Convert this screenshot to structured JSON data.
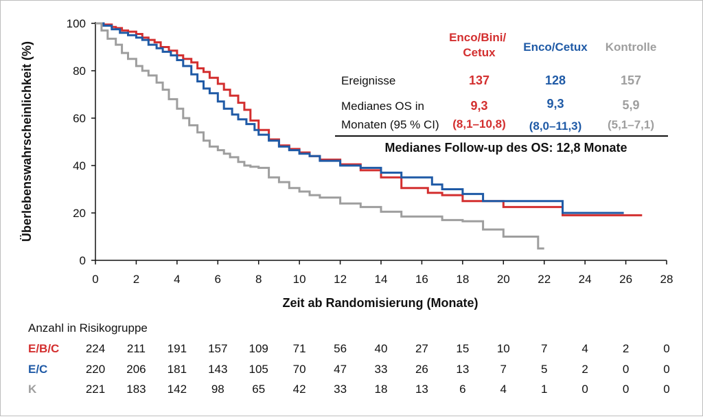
{
  "chart_data": {
    "type": "line",
    "ylabel": "Überlebenswahrscheinlichkeit (%)",
    "xlabel": "Zeit ab Randomisierung (Monate)",
    "xlim": [
      0,
      28
    ],
    "ylim": [
      0,
      100
    ],
    "x_ticks": [
      "0",
      "2",
      "4",
      "6",
      "8",
      "10",
      "12",
      "14",
      "16",
      "18",
      "20",
      "22",
      "24",
      "26",
      "28"
    ],
    "y_ticks": [
      "0",
      "20",
      "40",
      "60",
      "80",
      "100"
    ],
    "step": true,
    "series": [
      {
        "name": "Enco/Bini/Cetux",
        "short": "E/B/C",
        "color": "#d32f2f",
        "x": [
          0,
          0.4,
          0.8,
          1.0,
          1.3,
          1.6,
          2.0,
          2.3,
          2.6,
          2.9,
          3.2,
          3.6,
          4.0,
          4.3,
          4.7,
          5.0,
          5.3,
          5.6,
          6.0,
          6.3,
          6.6,
          7.0,
          7.3,
          7.6,
          8.0,
          8.5,
          9.0,
          9.5,
          10.0,
          10.5,
          11.0,
          12.0,
          13.0,
          14.0,
          15.0,
          16.0,
          16.3,
          17.0,
          18.0,
          19.0,
          20.0,
          22.0,
          22.9,
          24.0,
          26.0,
          26.8
        ],
        "y": [
          100,
          99.5,
          98.5,
          98,
          97,
          96.5,
          95.5,
          94,
          93,
          92,
          90,
          88.5,
          86.5,
          85,
          83.5,
          81,
          79.5,
          77,
          74.5,
          72,
          69.5,
          66.5,
          63.5,
          59,
          55,
          51,
          48.5,
          47,
          45.5,
          44,
          42.5,
          40.5,
          38,
          35,
          30.5,
          30.5,
          28.5,
          27.5,
          25,
          25,
          22.5,
          22.5,
          19,
          19,
          19,
          19
        ]
      },
      {
        "name": "Enco/Cetux",
        "short": "E/C",
        "color": "#1f5aa6",
        "x": [
          0,
          0.4,
          0.8,
          1.2,
          1.6,
          2.0,
          2.3,
          2.6,
          3.0,
          3.3,
          3.7,
          4.0,
          4.3,
          4.7,
          5.0,
          5.3,
          5.6,
          6.0,
          6.3,
          6.7,
          7.0,
          7.4,
          7.8,
          8.0,
          8.5,
          9.0,
          9.5,
          10.0,
          10.5,
          11.0,
          12.0,
          13.0,
          14.0,
          15.0,
          16.0,
          16.5,
          17.0,
          18.0,
          19.0,
          20.0,
          21.0,
          22.0,
          22.9,
          24.0,
          25.0,
          25.9
        ],
        "y": [
          100,
          99,
          97.5,
          96,
          95,
          94,
          93,
          91,
          89.5,
          88,
          86.5,
          84.5,
          82,
          78.5,
          75.5,
          72.5,
          70.5,
          67,
          64,
          61.5,
          59.5,
          57.5,
          55,
          53,
          50.5,
          48,
          46.5,
          45,
          44,
          42,
          40,
          39,
          37,
          35,
          35,
          32,
          30,
          28,
          25,
          25,
          25,
          25,
          20,
          20,
          20,
          20
        ]
      },
      {
        "name": "Kontrolle",
        "short": "K",
        "color": "#9e9e9e",
        "x": [
          0,
          0.3,
          0.6,
          1.0,
          1.3,
          1.6,
          2.0,
          2.3,
          2.6,
          3.0,
          3.3,
          3.6,
          4.0,
          4.3,
          4.6,
          5.0,
          5.3,
          5.6,
          6.0,
          6.3,
          6.6,
          7.0,
          7.3,
          7.6,
          8.0,
          8.5,
          9.0,
          9.5,
          10.0,
          10.5,
          11.0,
          12.0,
          13.0,
          14.0,
          15.0,
          16.0,
          17.0,
          18.0,
          19.0,
          20.0,
          21.0,
          21.7,
          22.0
        ],
        "y": [
          100,
          97,
          93.5,
          91,
          87.5,
          85,
          82,
          80,
          78,
          75,
          72,
          68,
          64,
          60,
          57,
          54,
          50.5,
          48,
          46.5,
          45,
          43.5,
          41.5,
          40,
          39.5,
          39,
          35,
          33,
          30.5,
          29,
          27.5,
          26.5,
          24,
          22.5,
          20.5,
          18.5,
          18.5,
          17,
          16.5,
          13,
          10,
          10,
          5,
          5
        ]
      }
    ]
  },
  "legend": {
    "headers": [
      {
        "lines": [
          "Enco/Bini/",
          "Cetux"
        ],
        "color": "#d32f2f"
      },
      {
        "lines": [
          "Enco/Cetux"
        ],
        "color": "#1f5aa6"
      },
      {
        "lines": [
          "Kontrolle"
        ],
        "color": "#9e9e9e"
      }
    ],
    "events_label": "Ereignisse",
    "events": [
      "137",
      "128",
      "157"
    ],
    "median_label_1": "Medianes OS in",
    "median_label_2": "Monaten (95 % CI)",
    "medians": [
      "9,3",
      "9,3",
      "5,9"
    ],
    "cis": [
      "(8,1–10,8)",
      "(8,0–11,3)",
      "(5,1–7,1)"
    ],
    "followup": "Medianes Follow-up des OS: 12,8 Monate"
  },
  "risk_table": {
    "title": "Anzahl in Risikogruppe",
    "rows": [
      {
        "label": "E/B/C",
        "color": "#d32f2f",
        "values": [
          "224",
          "211",
          "191",
          "157",
          "109",
          "71",
          "56",
          "40",
          "27",
          "15",
          "10",
          "7",
          "4",
          "2",
          "0"
        ]
      },
      {
        "label": "E/C",
        "color": "#1f5aa6",
        "values": [
          "220",
          "206",
          "181",
          "143",
          "105",
          "70",
          "47",
          "33",
          "26",
          "13",
          "7",
          "5",
          "2",
          "0",
          "0"
        ]
      },
      {
        "label": "K",
        "color": "#9e9e9e",
        "values": [
          "221",
          "183",
          "142",
          "98",
          "65",
          "42",
          "33",
          "18",
          "13",
          "6",
          "4",
          "1",
          "0",
          "0",
          "0"
        ]
      }
    ]
  }
}
